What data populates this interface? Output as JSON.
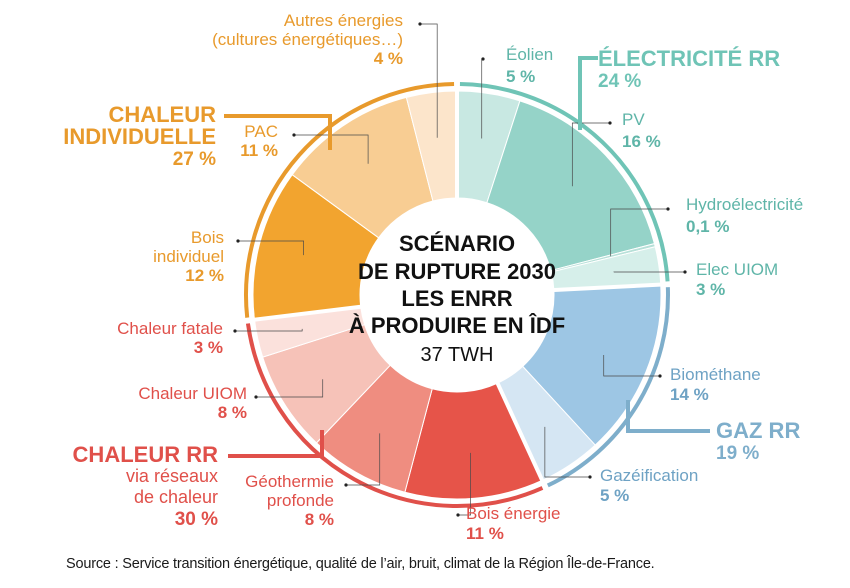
{
  "chart_data": {
    "type": "pie",
    "title": [
      "SCÉNARIO",
      "DE RUPTURE 2030",
      "LES ENRR",
      "À PRODUIRE EN ÎDF"
    ],
    "subtitle": "37 TWH",
    "groups": [
      {
        "name": [
          "ÉLECTRICITÉ RR"
        ],
        "value_label": "24 %",
        "value": 24,
        "color": "#6fc4b6"
      },
      {
        "name": [
          "GAZ RR"
        ],
        "value_label": "19 %",
        "value": 19,
        "color": "#7eaecb"
      },
      {
        "name": [
          "CHALEUR RR"
        ],
        "sub": [
          "via réseaux",
          "de chaleur"
        ],
        "value_label": "30 %",
        "value": 30,
        "color": "#e0504a"
      },
      {
        "name": [
          "CHALEUR",
          "INDIVIDUELLE"
        ],
        "value_label": "27 %",
        "value": 27,
        "color": "#e89a2c"
      }
    ],
    "segments": [
      {
        "label": [
          "Éolien"
        ],
        "value_label": "5 %",
        "value": 5,
        "group": 0,
        "color": "#c8e8e2"
      },
      {
        "label": [
          "PV"
        ],
        "value_label": "16 %",
        "value": 16,
        "group": 0,
        "color": "#95d3c8"
      },
      {
        "label": [
          "Hydroélectricité"
        ],
        "value_label": "0,1 %",
        "value": 0.1,
        "group": 0,
        "color": "#b7e0d8"
      },
      {
        "label": [
          "Elec UIOM"
        ],
        "value_label": "3 %",
        "value": 3,
        "group": 0,
        "color": "#d6efea"
      },
      {
        "label": [
          "Biométhane"
        ],
        "value_label": "14 %",
        "value": 14,
        "group": 1,
        "color": "#9dc6e4"
      },
      {
        "label": [
          "Gazéification"
        ],
        "value_label": "5 %",
        "value": 5,
        "group": 1,
        "color": "#d5e6f3"
      },
      {
        "label": [
          "Bois énergie"
        ],
        "value_label": "11 %",
        "value": 11,
        "group": 2,
        "color": "#e65449"
      },
      {
        "label": [
          "Géothermie",
          "profonde"
        ],
        "value_label": "8 %",
        "value": 8,
        "group": 2,
        "color": "#ef8d80"
      },
      {
        "label": [
          "Chaleur UIOM"
        ],
        "value_label": "8 %",
        "value": 8,
        "group": 2,
        "color": "#f6c2b8"
      },
      {
        "label": [
          "Chaleur fatale"
        ],
        "value_label": "3 %",
        "value": 3,
        "group": 2,
        "color": "#fbe1dc"
      },
      {
        "label": [
          "Bois",
          "individuel"
        ],
        "value_label": "12 %",
        "value": 12,
        "group": 3,
        "color": "#f2a42f"
      },
      {
        "label": [
          "PAC"
        ],
        "value_label": "11 %",
        "value": 11,
        "group": 3,
        "color": "#f8cd93"
      },
      {
        "label": [
          "Autres énergies",
          "(cultures énergétiques…)"
        ],
        "value_label": "4 %",
        "value": 4,
        "group": 3,
        "color": "#fce5cb"
      }
    ],
    "source": "Source : Service transition énergétique, qualité de l’air, bruit, climat de la Région Île-de-France."
  }
}
